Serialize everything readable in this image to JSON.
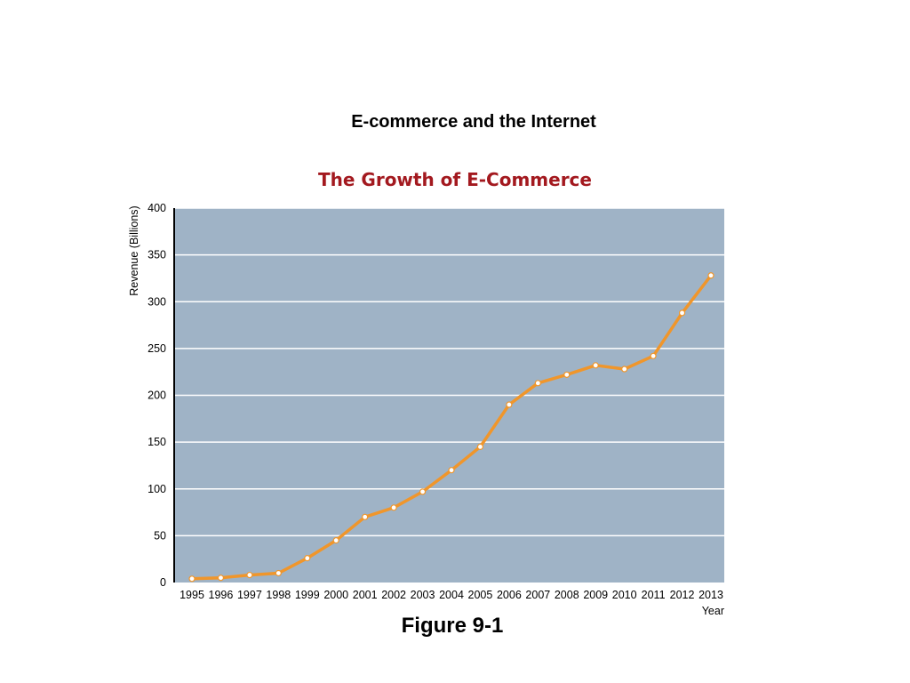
{
  "slide": {
    "title": "E-commerce and the Internet",
    "caption": "Figure 9-1"
  },
  "colors": {
    "plot_background": "#9fb3c6",
    "gridline": "#ffffff",
    "line": "#f0962b",
    "marker": "#ffffff",
    "chart_title": "#a3191f"
  },
  "chart_data": {
    "type": "line",
    "title": "The Growth of E-Commerce",
    "xlabel": "Year",
    "ylabel": "Revenue (Billions)",
    "ylim": [
      0,
      400
    ],
    "yticks": [
      0,
      50,
      100,
      150,
      200,
      250,
      300,
      350,
      400
    ],
    "grid": true,
    "categories": [
      "1995",
      "1996",
      "1997",
      "1998",
      "1999",
      "2000",
      "2001",
      "2002",
      "2003",
      "2004",
      "2005",
      "2006",
      "2007",
      "2008",
      "2009",
      "2010",
      "2011",
      "2012",
      "2013"
    ],
    "series": [
      {
        "values": [
          4,
          5,
          8,
          10,
          26,
          45,
          70,
          80,
          97,
          120,
          145,
          190,
          213,
          222,
          232,
          228,
          242,
          288,
          328
        ]
      }
    ]
  }
}
